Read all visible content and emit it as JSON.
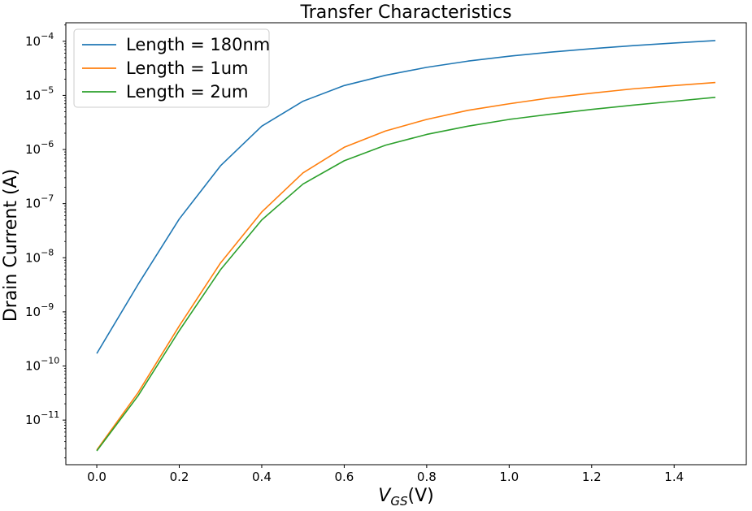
{
  "chart_data": {
    "type": "line",
    "title": "Transfer Characteristics",
    "xlabel": {
      "var": "V",
      "sub": "GS",
      "unit": "(V)"
    },
    "ylabel": "Drain Current (A)",
    "x": [
      0.0,
      0.1,
      0.2,
      0.3,
      0.4,
      0.5,
      0.6,
      0.7,
      0.8,
      0.9,
      1.0,
      1.1,
      1.2,
      1.3,
      1.4,
      1.5
    ],
    "series": [
      {
        "name": "Length = 180nm",
        "color": "#1f77b4",
        "values": [
          1.7e-10,
          3.2e-09,
          5.2e-08,
          5e-07,
          2.7e-06,
          7.8e-06,
          1.52e-05,
          2.35e-05,
          3.3e-05,
          4.3e-05,
          5.3e-05,
          6.3e-05,
          7.3e-05,
          8.3e-05,
          9.3e-05,
          0.000103
        ]
      },
      {
        "name": "Length = 1um",
        "color": "#ff7f0e",
        "values": [
          2.8e-12,
          3.2e-11,
          5.5e-10,
          8e-09,
          7e-08,
          3.7e-07,
          1.1e-06,
          2.2e-06,
          3.6e-06,
          5.3e-06,
          7e-06,
          9e-06,
          1.1e-05,
          1.32e-05,
          1.52e-05,
          1.73e-05
        ]
      },
      {
        "name": "Length = 2um",
        "color": "#2ca02c",
        "values": [
          2.7e-12,
          2.8e-11,
          4.5e-10,
          6e-09,
          5e-08,
          2.3e-07,
          6.2e-07,
          1.2e-06,
          1.9e-06,
          2.7e-06,
          3.6e-06,
          4.5e-06,
          5.5e-06,
          6.6e-06,
          7.8e-06,
          9.2e-06
        ]
      }
    ],
    "xlim": [
      -0.075,
      1.575
    ],
    "ylim": [
      1.5e-12,
      0.00022
    ],
    "yscale": "log",
    "xticks": [
      0.0,
      0.2,
      0.4,
      0.6,
      0.8,
      1.0,
      1.2,
      1.4
    ],
    "xtick_labels": [
      "0.0",
      "0.2",
      "0.4",
      "0.6",
      "0.8",
      "1.0",
      "1.2",
      "1.4"
    ],
    "yticks": [
      -11,
      -10,
      -9,
      -8,
      -7,
      -6,
      -5,
      -4
    ],
    "ytick_labels": [
      {
        "base": "10",
        "exp": "−11"
      },
      {
        "base": "10",
        "exp": "−10"
      },
      {
        "base": "10",
        "exp": "−9"
      },
      {
        "base": "10",
        "exp": "−8"
      },
      {
        "base": "10",
        "exp": "−7"
      },
      {
        "base": "10",
        "exp": "−6"
      },
      {
        "base": "10",
        "exp": "−5"
      },
      {
        "base": "10",
        "exp": "−4"
      }
    ],
    "grid": false,
    "legend_position": "top-left"
  }
}
